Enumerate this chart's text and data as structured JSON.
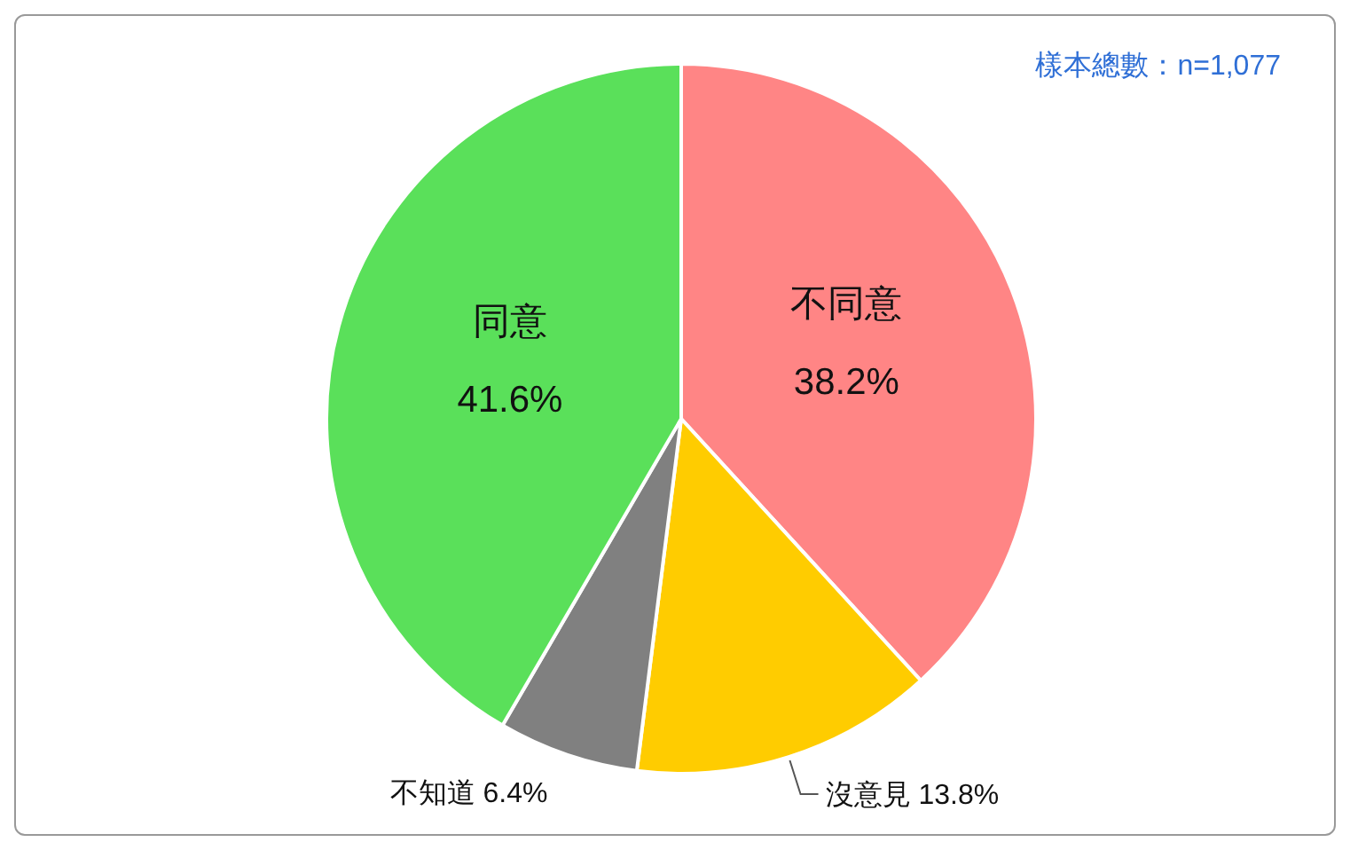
{
  "chart_data": {
    "type": "pie",
    "categories": [
      "不同意",
      "沒意見",
      "不知道",
      "同意"
    ],
    "values": [
      38.2,
      13.8,
      6.4,
      41.6
    ],
    "colors": [
      "#ff8585",
      "#ffcc00",
      "#808080",
      "#5ae05a"
    ],
    "value_labels": [
      "38.2%",
      "13.8%",
      "6.4%",
      "41.6%"
    ],
    "annotations": [
      "樣本總數：n=1,077"
    ]
  }
}
